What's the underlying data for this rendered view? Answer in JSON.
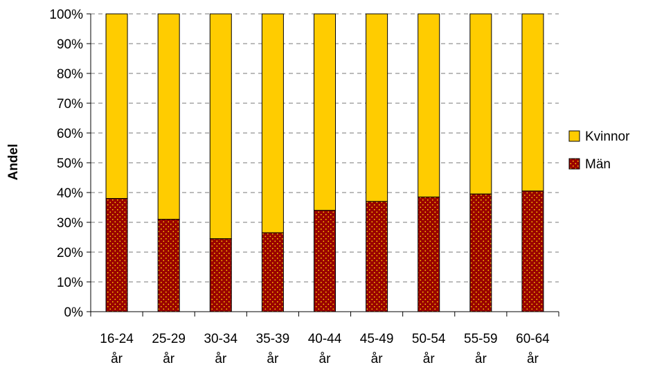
{
  "chart_data": {
    "type": "bar",
    "stacked": true,
    "normalized_to_percent": true,
    "categories": [
      "16-24 år",
      "25-29 år",
      "30-34 år",
      "35-39 år",
      "40-44 år",
      "45-49 år",
      "50-54 år",
      "55-59 år",
      "60-64 år"
    ],
    "series": [
      {
        "name": "Män",
        "values": [
          38,
          31,
          24.5,
          26.5,
          34,
          37,
          38.5,
          39.5,
          40.5
        ],
        "color": "#990000",
        "pattern": "dotted"
      },
      {
        "name": "Kvinnor",
        "values": [
          62,
          69,
          75.5,
          73.5,
          66,
          63,
          61.5,
          60.5,
          59.5
        ],
        "color": "#FFCC00"
      }
    ],
    "title": "",
    "xlabel": "",
    "ylabel": "Andel",
    "ylim": [
      0,
      100
    ],
    "yticks": [
      "0%",
      "10%",
      "20%",
      "30%",
      "40%",
      "50%",
      "60%",
      "70%",
      "80%",
      "90%",
      "100%"
    ],
    "grid": "horizontal-dashed",
    "legend": {
      "position": "right",
      "entries": [
        "Kvinnor",
        "Män"
      ]
    }
  }
}
